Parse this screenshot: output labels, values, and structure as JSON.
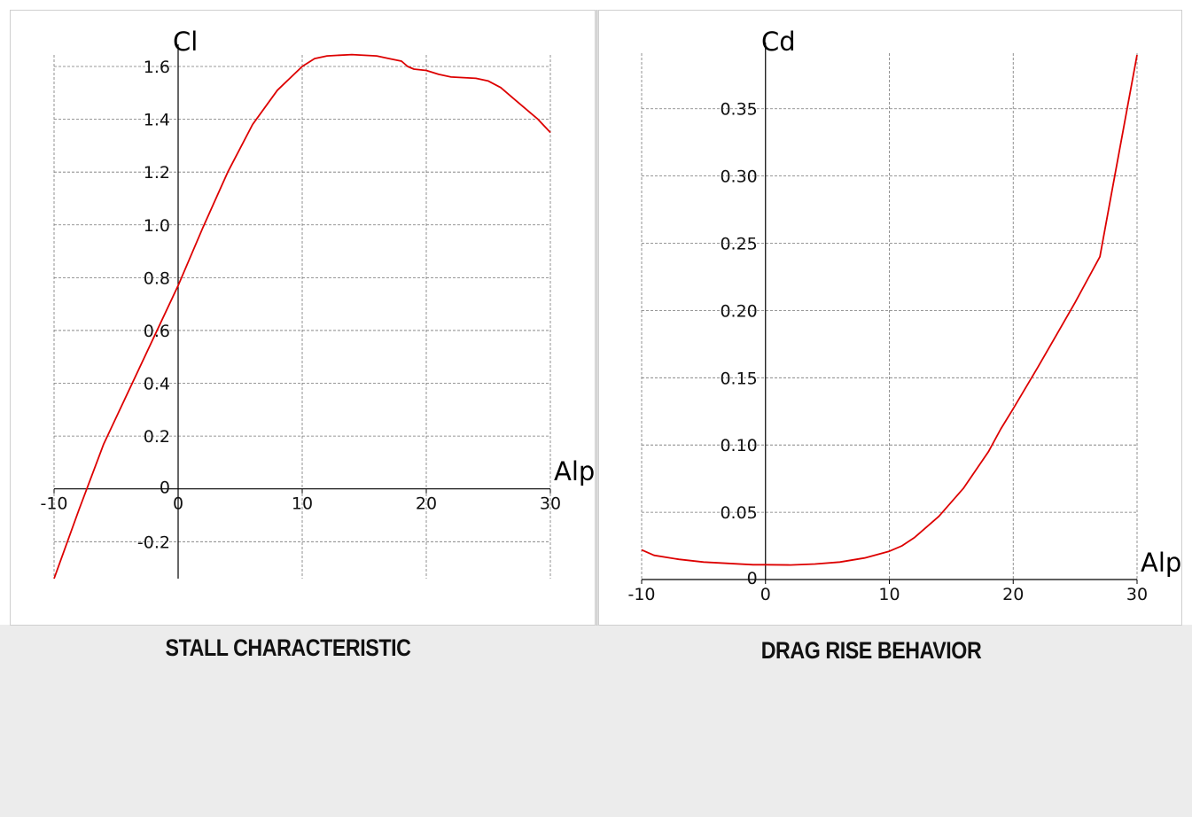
{
  "colors": {
    "background": "#ffffff",
    "footer": "#ececec",
    "panel_border": "#cfcfcf",
    "grid": "#777777",
    "axis": "#000000",
    "curve": "#dd0000"
  },
  "captions": {
    "left": "STALL CHARACTERISTIC",
    "right": "DRAG RISE BEHAVIOR"
  },
  "chart_data": [
    {
      "type": "line",
      "title": "STALL CHARACTERISTIC",
      "xlabel": "Alp",
      "ylabel": "Cl",
      "xlim": [
        -10,
        30
      ],
      "ylim": [
        -0.34,
        1.6
      ],
      "xticks": [
        "-10",
        "0",
        "10",
        "20",
        "30"
      ],
      "yticks": [
        "-0.2",
        "0",
        "0.2",
        "0.4",
        "0.6",
        "0.8",
        "1.0",
        "1.2",
        "1.4",
        "1.6"
      ],
      "grid": true,
      "series": [
        {
          "x": [
            -10,
            -8,
            -6,
            -4,
            -2,
            0,
            2,
            4,
            6,
            8,
            10,
            11,
            12,
            14,
            16,
            17,
            18,
            18.5,
            19,
            20,
            21,
            22,
            24,
            25,
            26,
            27,
            28,
            29,
            30
          ],
          "values": [
            -0.34,
            -0.08,
            0.17,
            0.37,
            0.57,
            0.77,
            0.99,
            1.2,
            1.38,
            1.51,
            1.6,
            1.63,
            1.64,
            1.645,
            1.64,
            1.63,
            1.62,
            1.6,
            1.59,
            1.585,
            1.57,
            1.56,
            1.555,
            1.545,
            1.52,
            1.48,
            1.44,
            1.4,
            1.35
          ]
        }
      ]
    },
    {
      "type": "line",
      "title": "DRAG RISE BEHAVIOR",
      "xlabel": "Alp",
      "ylabel": "Cd",
      "xlim": [
        -10,
        30
      ],
      "ylim": [
        0,
        0.39
      ],
      "xticks": [
        "-10",
        "0",
        "10",
        "20",
        "30"
      ],
      "yticks": [
        "0",
        "0.05",
        "0.10",
        "0.15",
        "0.20",
        "0.25",
        "0.30",
        "0.35"
      ],
      "grid": true,
      "series": [
        {
          "x": [
            -10,
            -9,
            -7,
            -5,
            -3,
            -1,
            0,
            2,
            4,
            6,
            8,
            10,
            11,
            12,
            14,
            16,
            18,
            19,
            20,
            22,
            24,
            25,
            26,
            27,
            28,
            29,
            30
          ],
          "values": [
            0.022,
            0.018,
            0.015,
            0.013,
            0.012,
            0.011,
            0.011,
            0.0108,
            0.0115,
            0.013,
            0.016,
            0.021,
            0.025,
            0.031,
            0.047,
            0.068,
            0.095,
            0.112,
            0.127,
            0.158,
            0.19,
            0.206,
            0.223,
            0.24,
            0.29,
            0.34,
            0.39
          ]
        }
      ]
    }
  ]
}
